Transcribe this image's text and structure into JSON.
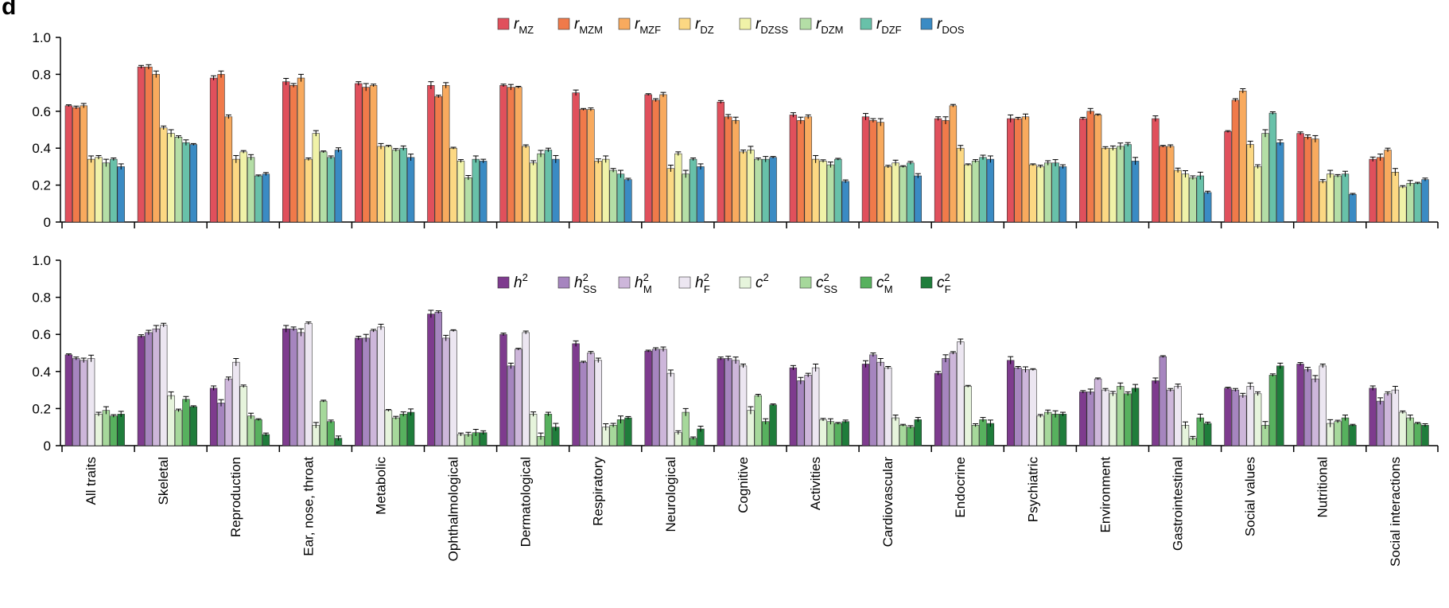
{
  "panel_letter": "d",
  "categories": [
    "All traits",
    "Skeletal",
    "Reproduction",
    "Ear, nose, throat",
    "Metabolic",
    "Ophthalmological",
    "Dermatological",
    "Respiratory",
    "Neurological",
    "Cognitive",
    "Activities",
    "Cardiovascular",
    "Endocrine",
    "Psychiatric",
    "Environment",
    "Gastrointestinal",
    "Social values",
    "Nutritional",
    "Social interactions"
  ],
  "chart_data": [
    {
      "type": "bar",
      "title": "",
      "xlabel": "",
      "ylabel": "",
      "ylim": [
        0,
        1.0
      ],
      "yticks": [
        "0",
        "0.2",
        "0.4",
        "0.6",
        "0.8",
        "1.0"
      ],
      "legend_position": "top-center",
      "categories": [
        "All traits",
        "Skeletal",
        "Reproduction",
        "Ear, nose, throat",
        "Metabolic",
        "Ophthalmological",
        "Dermatological",
        "Respiratory",
        "Neurological",
        "Cognitive",
        "Activities",
        "Cardiovascular",
        "Endocrine",
        "Psychiatric",
        "Environment",
        "Gastrointestinal",
        "Social values",
        "Nutritional",
        "Social interactions"
      ],
      "series": [
        {
          "name": "r",
          "sub": "MZ",
          "color": "#e0505c",
          "values": [
            0.63,
            0.84,
            0.78,
            0.76,
            0.75,
            0.74,
            0.74,
            0.7,
            0.69,
            0.65,
            0.58,
            0.57,
            0.56,
            0.56,
            0.56,
            0.56,
            0.49,
            0.48,
            0.34
          ]
        },
        {
          "name": "r",
          "sub": "MZM",
          "color": "#f07a4a",
          "values": [
            0.62,
            0.84,
            0.8,
            0.74,
            0.73,
            0.68,
            0.73,
            0.61,
            0.66,
            0.57,
            0.55,
            0.55,
            0.55,
            0.56,
            0.6,
            0.41,
            0.66,
            0.46,
            0.35
          ]
        },
        {
          "name": "r",
          "sub": "MZF",
          "color": "#f8aa5e",
          "values": [
            0.63,
            0.8,
            0.57,
            0.78,
            0.74,
            0.74,
            0.73,
            0.61,
            0.69,
            0.55,
            0.57,
            0.54,
            0.63,
            0.57,
            0.58,
            0.41,
            0.71,
            0.45,
            0.39
          ]
        },
        {
          "name": "r",
          "sub": "DZ",
          "color": "#fcd883",
          "values": [
            0.34,
            0.51,
            0.34,
            0.34,
            0.41,
            0.4,
            0.41,
            0.33,
            0.29,
            0.38,
            0.34,
            0.3,
            0.4,
            0.31,
            0.4,
            0.28,
            0.42,
            0.22,
            0.27
          ]
        },
        {
          "name": "r",
          "sub": "DZSS",
          "color": "#f0f2a8",
          "values": [
            0.35,
            0.48,
            0.38,
            0.48,
            0.41,
            0.33,
            0.32,
            0.34,
            0.37,
            0.39,
            0.33,
            0.32,
            0.31,
            0.3,
            0.4,
            0.26,
            0.3,
            0.26,
            0.19
          ]
        },
        {
          "name": "r",
          "sub": "DZM",
          "color": "#b4dea6",
          "values": [
            0.32,
            0.46,
            0.35,
            0.38,
            0.39,
            0.24,
            0.37,
            0.28,
            0.26,
            0.34,
            0.31,
            0.3,
            0.33,
            0.32,
            0.41,
            0.24,
            0.48,
            0.25,
            0.21
          ]
        },
        {
          "name": "r",
          "sub": "DZF",
          "color": "#68c1a9",
          "values": [
            0.34,
            0.43,
            0.25,
            0.35,
            0.4,
            0.34,
            0.39,
            0.26,
            0.34,
            0.34,
            0.34,
            0.32,
            0.35,
            0.32,
            0.42,
            0.25,
            0.59,
            0.26,
            0.21
          ]
        },
        {
          "name": "r",
          "sub": "DOS",
          "color": "#3a8bc4",
          "values": [
            0.3,
            0.42,
            0.26,
            0.39,
            0.35,
            0.33,
            0.34,
            0.23,
            0.3,
            0.35,
            0.22,
            0.25,
            0.34,
            0.3,
            0.33,
            0.16,
            0.43,
            0.15,
            0.23
          ]
        }
      ]
    },
    {
      "type": "bar",
      "title": "",
      "xlabel": "",
      "ylabel": "",
      "ylim": [
        0,
        1.0
      ],
      "yticks": [
        "0",
        "0.2",
        "0.4",
        "0.6",
        "0.8",
        "1.0"
      ],
      "legend_position": "top-center",
      "categories": [
        "All traits",
        "Skeletal",
        "Reproduction",
        "Ear, nose, throat",
        "Metabolic",
        "Ophthalmological",
        "Dermatological",
        "Respiratory",
        "Neurological",
        "Cognitive",
        "Activities",
        "Cardiovascular",
        "Endocrine",
        "Psychiatric",
        "Environment",
        "Gastrointestinal",
        "Social values",
        "Nutritional",
        "Social interactions"
      ],
      "series": [
        {
          "name": "h",
          "sup": "2",
          "sub": "",
          "color": "#7e3b8e",
          "values": [
            0.49,
            0.59,
            0.31,
            0.63,
            0.58,
            0.71,
            0.6,
            0.55,
            0.51,
            0.47,
            0.42,
            0.44,
            0.39,
            0.46,
            0.29,
            0.35,
            0.31,
            0.44,
            0.31
          ]
        },
        {
          "name": "h",
          "sup": "2",
          "sub": "SS",
          "color": "#a685bf",
          "values": [
            0.47,
            0.61,
            0.23,
            0.63,
            0.58,
            0.72,
            0.43,
            0.45,
            0.52,
            0.47,
            0.35,
            0.49,
            0.47,
            0.42,
            0.29,
            0.48,
            0.3,
            0.41,
            0.24
          ]
        },
        {
          "name": "h",
          "sup": "2",
          "sub": "M",
          "color": "#cdb6da",
          "values": [
            0.46,
            0.63,
            0.36,
            0.61,
            0.62,
            0.58,
            0.52,
            0.5,
            0.52,
            0.46,
            0.38,
            0.45,
            0.5,
            0.41,
            0.36,
            0.3,
            0.27,
            0.36,
            0.28
          ]
        },
        {
          "name": "h",
          "sup": "2",
          "sub": "F",
          "color": "#ece6f1",
          "values": [
            0.47,
            0.65,
            0.45,
            0.66,
            0.64,
            0.62,
            0.61,
            0.46,
            0.39,
            0.43,
            0.42,
            0.42,
            0.56,
            0.41,
            0.3,
            0.32,
            0.32,
            0.43,
            0.3
          ]
        },
        {
          "name": "c",
          "sup": "2",
          "sub": "",
          "color": "#e6f4dc",
          "values": [
            0.17,
            0.27,
            0.32,
            0.11,
            0.19,
            0.06,
            0.17,
            0.1,
            0.07,
            0.19,
            0.14,
            0.15,
            0.32,
            0.16,
            0.28,
            0.11,
            0.28,
            0.12,
            0.18
          ]
        },
        {
          "name": "c",
          "sup": "2",
          "sub": "SS",
          "color": "#a6d89b",
          "values": [
            0.19,
            0.19,
            0.16,
            0.24,
            0.15,
            0.06,
            0.05,
            0.11,
            0.18,
            0.27,
            0.13,
            0.11,
            0.11,
            0.18,
            0.32,
            0.04,
            0.11,
            0.13,
            0.15
          ]
        },
        {
          "name": "c",
          "sup": "2",
          "sub": "M",
          "color": "#57b15e",
          "values": [
            0.16,
            0.25,
            0.14,
            0.13,
            0.17,
            0.07,
            0.17,
            0.14,
            0.04,
            0.13,
            0.12,
            0.1,
            0.14,
            0.17,
            0.28,
            0.15,
            0.38,
            0.15,
            0.12
          ]
        },
        {
          "name": "c",
          "sup": "2",
          "sub": "F",
          "color": "#1f7d3b",
          "values": [
            0.17,
            0.21,
            0.06,
            0.04,
            0.18,
            0.07,
            0.1,
            0.15,
            0.09,
            0.22,
            0.13,
            0.14,
            0.12,
            0.17,
            0.31,
            0.12,
            0.43,
            0.11,
            0.11
          ]
        }
      ]
    }
  ]
}
